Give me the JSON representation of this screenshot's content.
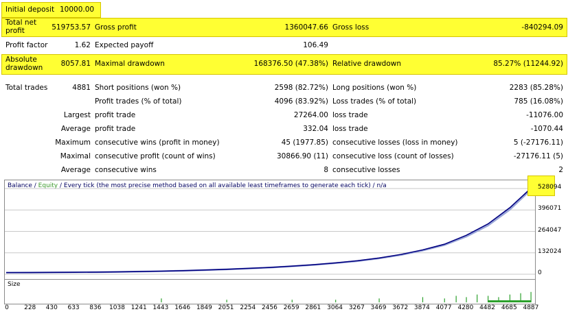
{
  "summary": {
    "initial_deposit": {
      "label": "Initial deposit",
      "value": "10000.00"
    },
    "total_net_profit": {
      "label": "Total net profit",
      "value": "519753.57"
    },
    "gross_profit": {
      "label": "Gross profit",
      "value": "1360047.66"
    },
    "gross_loss": {
      "label": "Gross loss",
      "value": "-840294.09"
    },
    "profit_factor": {
      "label": "Profit factor",
      "value": "1.62"
    },
    "expected_payoff": {
      "label": "Expected payoff",
      "value": "106.49"
    },
    "absolute_drawdown": {
      "label": "Absolute drawdown",
      "value": "8057.81"
    },
    "maximal_drawdown": {
      "label": "Maximal drawdown",
      "value": "168376.50 (47.38%)"
    },
    "relative_drawdown": {
      "label": "Relative drawdown",
      "value": "85.27% (11244.92)"
    },
    "total_trades": {
      "label": "Total trades",
      "value": "4881"
    },
    "short_positions": {
      "label": "Short positions (won %)",
      "value": "2598 (82.72%)"
    },
    "long_positions": {
      "label": "Long positions (won %)",
      "value": "2283 (85.28%)"
    },
    "profit_trades": {
      "label": "Profit trades (% of total)",
      "value": "4096 (83.92%)"
    },
    "loss_trades": {
      "label": "Loss trades (% of total)",
      "value": "785 (16.08%)"
    },
    "largest_label": "Largest",
    "largest_profit_trade": {
      "label": "profit trade",
      "value": "27264.00"
    },
    "largest_loss_trade": {
      "label": "loss trade",
      "value": "-11076.00"
    },
    "average_label": "Average",
    "average_profit_trade": {
      "label": "profit trade",
      "value": "332.04"
    },
    "average_loss_trade": {
      "label": "loss trade",
      "value": "-1070.44"
    },
    "maximum_label": "Maximum",
    "max_consecutive_wins": {
      "label": "consecutive wins (profit in money)",
      "value": "45 (1977.85)"
    },
    "max_consecutive_losses": {
      "label": "consecutive losses (loss in money)",
      "value": "5 (-27176.11)"
    },
    "maximal_label": "Maximal",
    "maximal_consecutive_profit": {
      "label": "consecutive profit (count of wins)",
      "value": "30866.90 (11)"
    },
    "maximal_consecutive_loss": {
      "label": "consecutive loss (count of losses)",
      "value": "-27176.11 (5)"
    },
    "average2_label": "Average",
    "avg_consecutive_wins": {
      "label": "consecutive wins",
      "value": "8"
    },
    "avg_consecutive_losses": {
      "label": "consecutive losses",
      "value": "2"
    }
  },
  "chart": {
    "title_balance": "Balance",
    "title_sep": " / ",
    "title_equity": "Equity",
    "title_rest": " / Every tick (the most precise method based on all available least timeframes to generate each tick) / n/a",
    "size_label": "Size",
    "colors": {
      "balance": "#000080",
      "equity": "#9aa6d8",
      "size": "#2ca02c",
      "highlight": "#ffff33"
    }
  },
  "chart_data": {
    "type": "line",
    "title": "Balance / Equity / Every tick (the most precise method based on all available least timeframes to generate each tick) / n/a",
    "xlabel": "",
    "ylabel": "",
    "x_ticks": [
      "0",
      "228",
      "430",
      "633",
      "836",
      "1038",
      "1241",
      "1443",
      "1646",
      "1849",
      "2051",
      "2254",
      "2456",
      "2659",
      "2861",
      "3064",
      "3267",
      "3469",
      "3672",
      "3874",
      "4077",
      "4280",
      "4482",
      "4685",
      "4887"
    ],
    "y_ticks": [
      "0",
      "132024",
      "264047",
      "396071",
      "528094"
    ],
    "ylim": [
      0,
      528094
    ],
    "xlim": [
      0,
      4881
    ],
    "series": [
      {
        "name": "Balance",
        "x": [
          0,
          228,
          430,
          633,
          836,
          1038,
          1241,
          1443,
          1646,
          1849,
          2051,
          2254,
          2456,
          2659,
          2861,
          3064,
          3267,
          3469,
          3672,
          3874,
          4077,
          4280,
          4482,
          4685,
          4881
        ],
        "values": [
          10000,
          10500,
          11200,
          12000,
          13000,
          14500,
          16500,
          19000,
          22000,
          26000,
          30500,
          36000,
          42000,
          50000,
          59000,
          70000,
          83000,
          100000,
          122000,
          150000,
          185000,
          240000,
          310000,
          410000,
          529753
        ]
      },
      {
        "name": "Equity",
        "x": [
          0,
          228,
          430,
          633,
          836,
          1038,
          1241,
          1443,
          1646,
          1849,
          2051,
          2254,
          2456,
          2659,
          2861,
          3064,
          3267,
          3469,
          3672,
          3874,
          4077,
          4280,
          4482,
          4685,
          4881
        ],
        "values": [
          10000,
          10400,
          11100,
          11900,
          12900,
          14300,
          16300,
          18700,
          21700,
          25600,
          30000,
          35300,
          41200,
          49000,
          57800,
          68500,
          81000,
          97500,
          119000,
          146000,
          180000,
          232000,
          300000,
          398000,
          521000
        ]
      }
    ],
    "size_series": {
      "name": "Size",
      "x": [
        1443,
        2051,
        2659,
        3064,
        3469,
        3874,
        4077,
        4185,
        4280,
        4380,
        4482,
        4580,
        4685,
        4785,
        4881
      ],
      "values": [
        3,
        2,
        2,
        2,
        3,
        4,
        3,
        5,
        4,
        6,
        5,
        4,
        6,
        7,
        8
      ]
    }
  }
}
